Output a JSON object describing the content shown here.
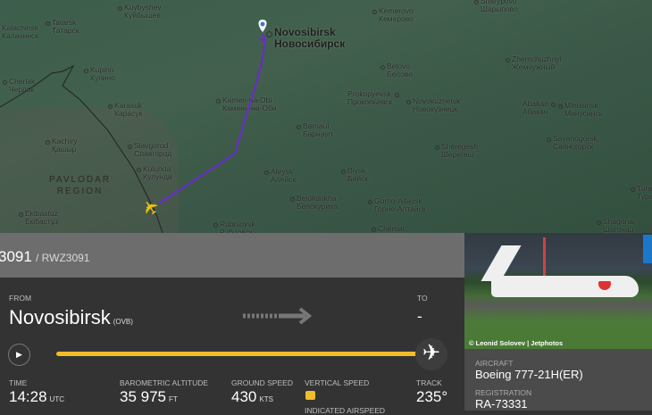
{
  "map": {
    "region_label": [
      "PAVLODAR",
      "REGION"
    ],
    "cities": [
      {
        "en": "Kuybyshev",
        "ru": "Куйбышев"
      },
      {
        "en": "Tatarsk",
        "ru": "Татарск"
      },
      {
        "en": "Kalachinsk",
        "ru": "Калачинск"
      },
      {
        "en": "Kupino",
        "ru": "Купино"
      },
      {
        "en": "Cherlak",
        "ru": "Черлак"
      },
      {
        "en": "Karasuk",
        "ru": "Карасук"
      },
      {
        "en": "Kachiry",
        "ru": "Қашыр"
      },
      {
        "en": "Slavgorod",
        "ru": "Славгород"
      },
      {
        "en": "Kulunda",
        "ru": "Кулунда"
      },
      {
        "en": "Ekibastuz",
        "ru": "Екібастұз"
      },
      {
        "en": "Kamen-na-Obi",
        "ru": "Камень-на-Оби"
      },
      {
        "en": "Novosibirsk",
        "ru": "Новосибирск"
      },
      {
        "en": "Barnaul",
        "ru": "Барнаул"
      },
      {
        "en": "Aleysk",
        "ru": "Алейск"
      },
      {
        "en": "Belokurikha",
        "ru": "Белокуриха"
      },
      {
        "en": "Rubtsovsk",
        "ru": "Рубцовск"
      },
      {
        "en": "Kemerovo",
        "ru": "Кемерово"
      },
      {
        "en": "Sharypovo",
        "ru": "Шарыпово"
      },
      {
        "en": "Belovo",
        "ru": "Белово"
      },
      {
        "en": "Prokopyevsk",
        "ru": "Прокопьевск"
      },
      {
        "en": "Novokuznetsk",
        "ru": "Новокузнецк"
      },
      {
        "en": "Biysk",
        "ru": "Бийск"
      },
      {
        "en": "Gorno-Altaysk",
        "ru": "Горно-Алтайск"
      },
      {
        "en": "Chemal",
        "ru": "Чемал"
      },
      {
        "en": "Sheregesh",
        "ru": "Шерегеш"
      },
      {
        "en": "Zhemchuzhnyi",
        "ru": "Жемчужный"
      },
      {
        "en": "Abakan",
        "ru": "Абакан"
      },
      {
        "en": "Minusinsk",
        "ru": "Минусинск"
      },
      {
        "en": "Sayanogorsk",
        "ru": "Саяногорск"
      },
      {
        "en": "Shagonar",
        "ru": "Шагонар"
      },
      {
        "en": "Tura",
        "ru": "Тура"
      }
    ]
  },
  "flight": {
    "callsign": "3091",
    "icao": "/ RWZ3091"
  },
  "route": {
    "from_label": "FROM",
    "from_city": "Novosibirsk",
    "from_code": "(OVB)",
    "to_label": "TO",
    "to_city": "-",
    "progress_percent": 100
  },
  "stats": {
    "time_label": "TIME",
    "time": "14:28",
    "time_unit": "UTC",
    "alt_label": "BAROMETRIC ALTITUDE",
    "alt": "35 975",
    "alt_unit": "FT",
    "gs_label": "GROUND SPEED",
    "gs": "430",
    "gs_unit": "KTS",
    "vs_label": "VERTICAL SPEED",
    "ias_label": "INDICATED AIRSPEED",
    "track_label": "TRACK",
    "track": "235°"
  },
  "photo": {
    "credit": "© Leonid Solovev | Jetphotos"
  },
  "aircraft": {
    "aircraft_label": "AIRCRAFT",
    "aircraft": "Boeing 777-21H(ER)",
    "reg_label": "REGISTRATION",
    "reg": "RA-73331"
  },
  "colors": {
    "progress": "#f2bd2a",
    "accent": "#1b78c9",
    "lock": "#f2bd2a"
  }
}
